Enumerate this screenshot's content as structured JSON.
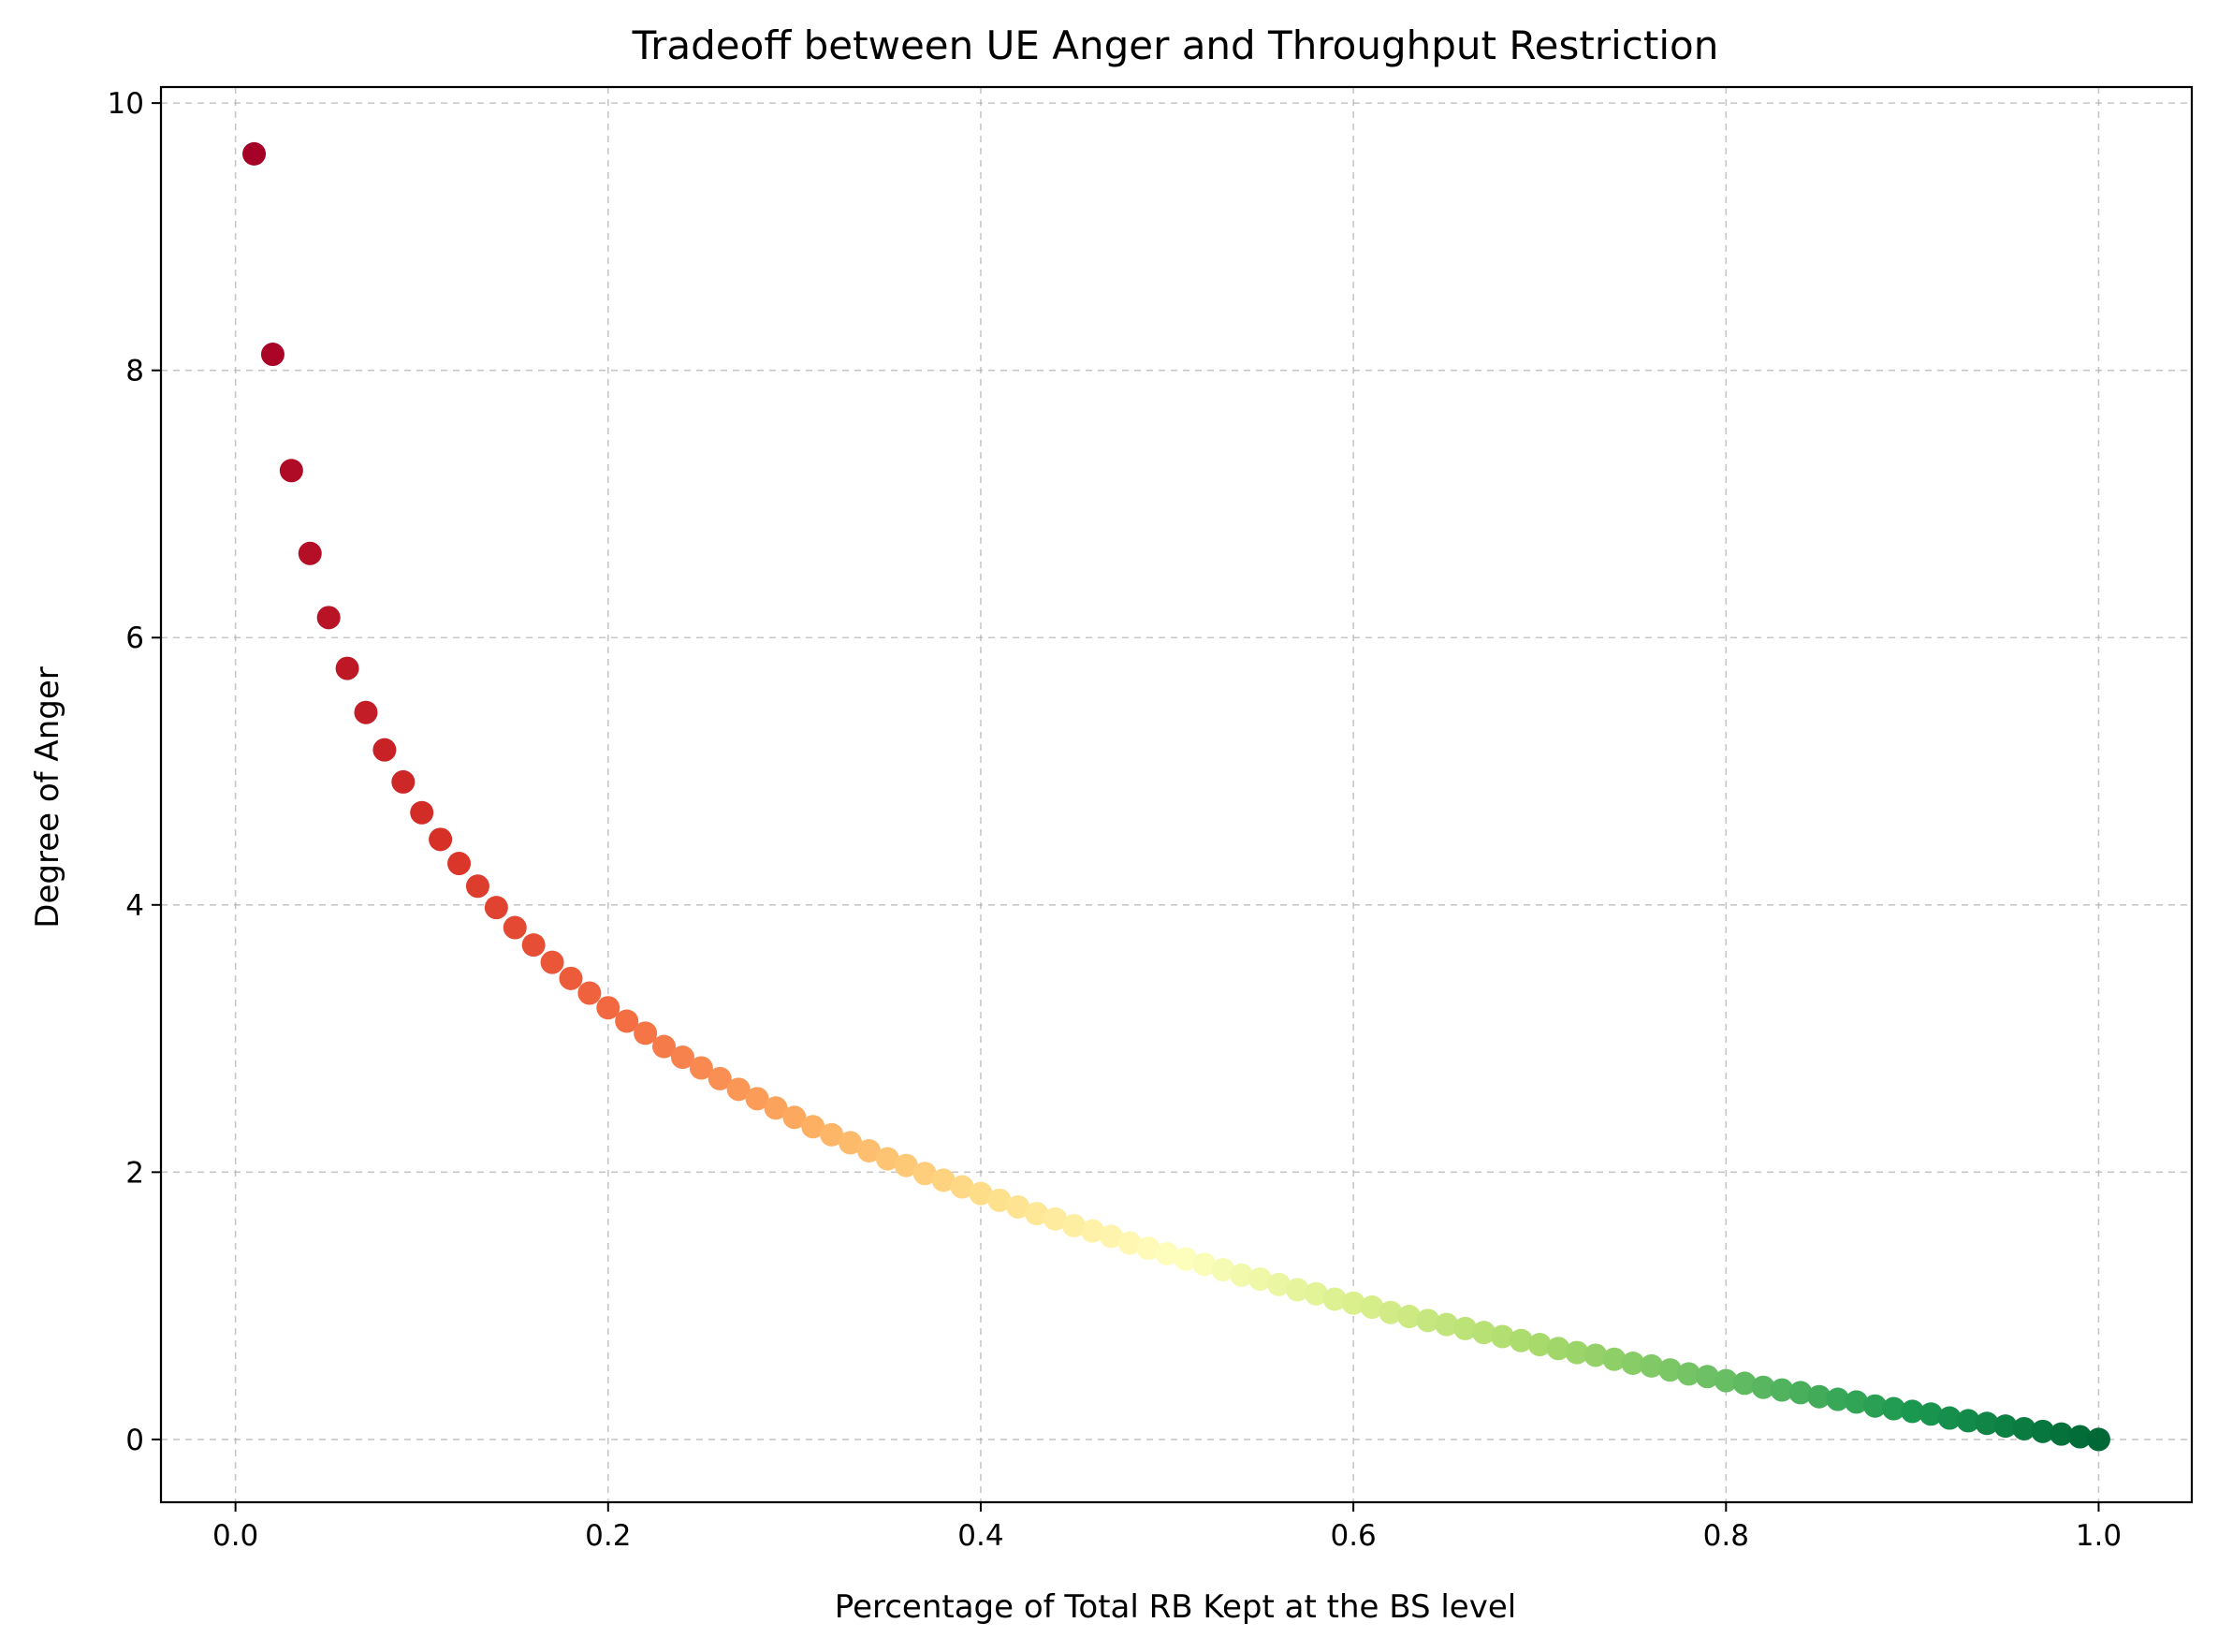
{
  "chart_data": {
    "type": "scatter",
    "title": "Tradeoff between UE Anger and Throughput Restriction",
    "xlabel": "Percentage of Total RB Kept at the BS level",
    "ylabel": "Degree of Anger",
    "xlim": [
      -0.04,
      1.05
    ],
    "ylim": [
      -0.47,
      10.12
    ],
    "xticks": [
      0.0,
      0.2,
      0.4,
      0.6,
      0.8,
      1.0
    ],
    "xtick_labels": [
      "0.0",
      "0.2",
      "0.4",
      "0.6",
      "0.8",
      "1.0"
    ],
    "yticks": [
      0,
      2,
      4,
      6,
      8,
      10
    ],
    "ytick_labels": [
      "0",
      "2",
      "4",
      "6",
      "8",
      "10"
    ],
    "grid": true,
    "grid_style": "dashed",
    "colormap": "RdYlGn",
    "color_by": "x",
    "marker_count": 100,
    "x": [
      0.01,
      0.02,
      0.03,
      0.04,
      0.05,
      0.06,
      0.07,
      0.08,
      0.09,
      0.1,
      0.11,
      0.12,
      0.13,
      0.14,
      0.15,
      0.16,
      0.17,
      0.18,
      0.19,
      0.2,
      0.21,
      0.22,
      0.23,
      0.24,
      0.25,
      0.26,
      0.27,
      0.28,
      0.29,
      0.3,
      0.31,
      0.32,
      0.33,
      0.34,
      0.35,
      0.36,
      0.37,
      0.38,
      0.39,
      0.4,
      0.41,
      0.42,
      0.43,
      0.44,
      0.45,
      0.46,
      0.47,
      0.48,
      0.49,
      0.5,
      0.51,
      0.52,
      0.53,
      0.54,
      0.55,
      0.56,
      0.57,
      0.58,
      0.59,
      0.6,
      0.61,
      0.62,
      0.63,
      0.64,
      0.65,
      0.66,
      0.67,
      0.68,
      0.69,
      0.7,
      0.71,
      0.72,
      0.73,
      0.74,
      0.75,
      0.76,
      0.77,
      0.78,
      0.79,
      0.8,
      0.81,
      0.82,
      0.83,
      0.84,
      0.85,
      0.86,
      0.87,
      0.88,
      0.89,
      0.9,
      0.91,
      0.92,
      0.93,
      0.94,
      0.95,
      0.96,
      0.97,
      0.98,
      0.99,
      1.0
    ],
    "y": [
      9.62,
      8.12,
      7.25,
      6.63,
      6.15,
      5.77,
      5.44,
      5.16,
      4.92,
      4.69,
      4.49,
      4.31,
      4.14,
      3.98,
      3.83,
      3.7,
      3.57,
      3.45,
      3.34,
      3.23,
      3.13,
      3.04,
      2.94,
      2.86,
      2.78,
      2.7,
      2.62,
      2.55,
      2.48,
      2.41,
      2.34,
      2.28,
      2.22,
      2.16,
      2.1,
      2.05,
      1.99,
      1.94,
      1.89,
      1.84,
      1.79,
      1.74,
      1.69,
      1.65,
      1.6,
      1.56,
      1.52,
      1.47,
      1.43,
      1.39,
      1.35,
      1.31,
      1.27,
      1.23,
      1.2,
      1.16,
      1.12,
      1.09,
      1.05,
      1.02,
      0.99,
      0.95,
      0.92,
      0.89,
      0.86,
      0.83,
      0.8,
      0.77,
      0.74,
      0.71,
      0.68,
      0.65,
      0.63,
      0.6,
      0.57,
      0.55,
      0.52,
      0.49,
      0.47,
      0.44,
      0.42,
      0.39,
      0.37,
      0.35,
      0.32,
      0.3,
      0.28,
      0.25,
      0.23,
      0.21,
      0.19,
      0.16,
      0.14,
      0.12,
      0.1,
      0.08,
      0.06,
      0.04,
      0.02,
      0.0
    ]
  }
}
